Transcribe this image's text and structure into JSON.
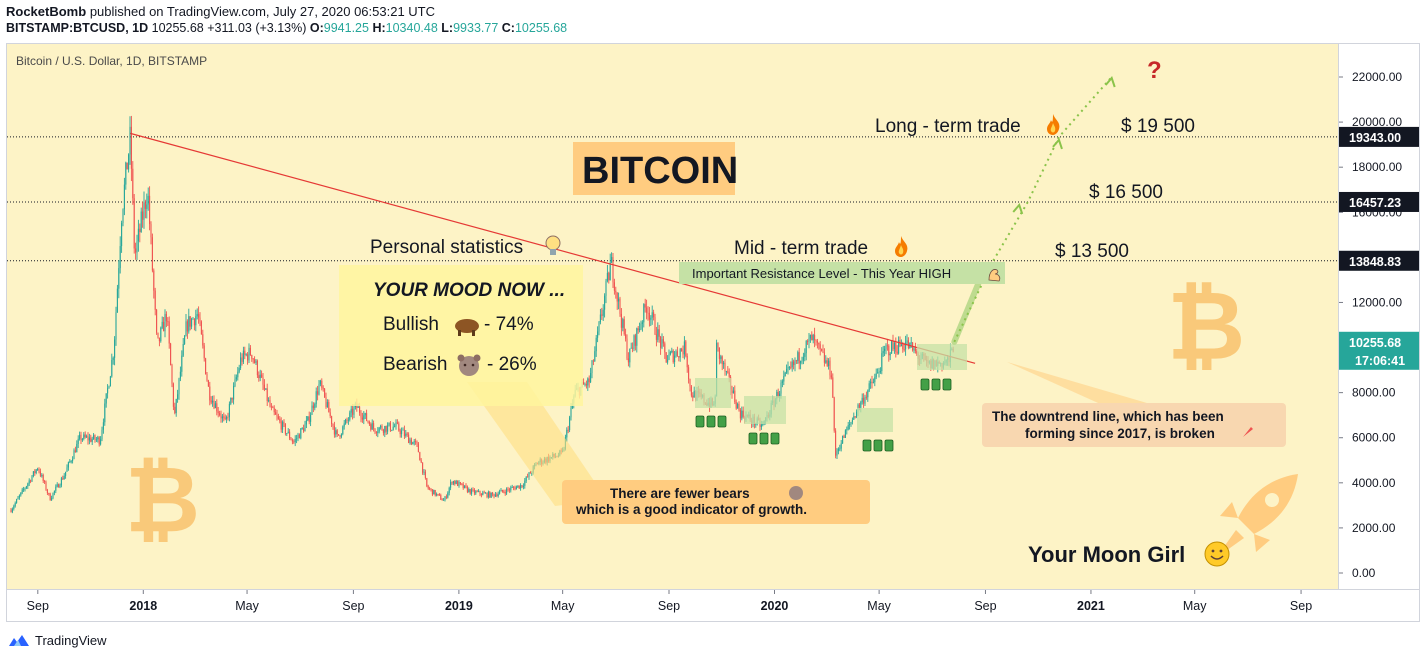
{
  "header": {
    "author": "RocketBomb",
    "published": "published on TradingView.com, July 27, 2020 06:53:21 UTC",
    "symbol_line": "BITSTAMP:BTCUSD, 1D",
    "last": "10255.68",
    "change": "+311.03 (+3.13%)",
    "o_label": "O:",
    "o": "9941.25",
    "h_label": "H:",
    "h": "10340.48",
    "l_label": "L:",
    "l": "9933.77",
    "c_label": "C:",
    "c": "10255.68"
  },
  "footer": {
    "brand": "TradingView"
  },
  "chart_data": {
    "type": "candlestick",
    "title": "Bitcoin / U.S. Dollar, 1D, BITSTAMP",
    "ylim": [
      -1000,
      23000
    ],
    "y_ticks": [
      "0.00",
      "2000.00",
      "4000.00",
      "6000.00",
      "8000.00",
      "10000.00",
      "12000.00",
      "14000.00",
      "16000.00",
      "18000.00",
      "20000.00",
      "22000.00"
    ],
    "x_ticks": [
      "Sep",
      "2018",
      "May",
      "Sep",
      "2019",
      "May",
      "Sep",
      "2020",
      "May",
      "Sep",
      "2021",
      "May",
      "Sep"
    ],
    "price_path": [
      [
        "2017-08-01",
        2800
      ],
      [
        "2017-09-01",
        4700
      ],
      [
        "2017-09-15",
        3300
      ],
      [
        "2017-10-01",
        4300
      ],
      [
        "2017-10-20",
        6000
      ],
      [
        "2017-11-12",
        5900
      ],
      [
        "2017-11-28",
        10000
      ],
      [
        "2017-12-07",
        16000
      ],
      [
        "2017-12-17",
        19343
      ],
      [
        "2017-12-22",
        14000
      ],
      [
        "2018-01-06",
        17000
      ],
      [
        "2018-01-17",
        10000
      ],
      [
        "2018-01-28",
        11500
      ],
      [
        "2018-02-06",
        6900
      ],
      [
        "2018-02-20",
        11000
      ],
      [
        "2018-03-05",
        11500
      ],
      [
        "2018-03-18",
        8000
      ],
      [
        "2018-04-06",
        6600
      ],
      [
        "2018-04-24",
        9500
      ],
      [
        "2018-05-06",
        9800
      ],
      [
        "2018-05-29",
        7200
      ],
      [
        "2018-06-24",
        5800
      ],
      [
        "2018-07-10",
        6700
      ],
      [
        "2018-07-24",
        8400
      ],
      [
        "2018-08-13",
        6000
      ],
      [
        "2018-09-04",
        7400
      ],
      [
        "2018-09-25",
        6400
      ],
      [
        "2018-10-20",
        6500
      ],
      [
        "2018-11-14",
        5600
      ],
      [
        "2018-11-25",
        3800
      ],
      [
        "2018-12-15",
        3200
      ],
      [
        "2018-12-24",
        4100
      ],
      [
        "2019-01-15",
        3600
      ],
      [
        "2019-02-08",
        3450
      ],
      [
        "2019-03-15",
        3900
      ],
      [
        "2019-04-02",
        4900
      ],
      [
        "2019-05-01",
        5300
      ],
      [
        "2019-05-15",
        8000
      ],
      [
        "2019-06-01",
        8500
      ],
      [
        "2019-06-26",
        13800
      ],
      [
        "2019-07-16",
        9500
      ],
      [
        "2019-08-06",
        11900
      ],
      [
        "2019-08-29",
        9500
      ],
      [
        "2019-09-20",
        10000
      ],
      [
        "2019-09-26",
        8000
      ],
      [
        "2019-10-24",
        7400
      ],
      [
        "2019-10-26",
        10000
      ],
      [
        "2019-11-22",
        7100
      ],
      [
        "2019-12-18",
        6500
      ],
      [
        "2020-01-14",
        8700
      ],
      [
        "2020-02-13",
        10400
      ],
      [
        "2020-03-07",
        8900
      ],
      [
        "2020-03-12",
        4800
      ],
      [
        "2020-03-13",
        5400
      ],
      [
        "2020-04-06",
        7300
      ],
      [
        "2020-04-29",
        8800
      ],
      [
        "2020-05-08",
        9900
      ],
      [
        "2020-06-01",
        10200
      ],
      [
        "2020-06-26",
        9200
      ],
      [
        "2020-07-21",
        9400
      ],
      [
        "2020-07-27",
        10255.68
      ]
    ],
    "candles_note": "daily candles, green = up, red = down",
    "horizontal_levels": [
      {
        "price": 19343.0,
        "label": "19343.00"
      },
      {
        "price": 16457.23,
        "label": "16457.23"
      },
      {
        "price": 13848.83,
        "label": "13848.83"
      }
    ],
    "last_price": {
      "label": "10255.68",
      "countdown": "17:06:41",
      "color": "#26a69a"
    },
    "trendline": {
      "from": [
        "2017-12-17",
        19500
      ],
      "to": [
        "2020-08-20",
        9300
      ],
      "color": "#e53935"
    },
    "projection": [
      [
        "2020-07-27",
        10255
      ],
      [
        "2020-09-10",
        13848
      ],
      [
        "2020-10-20",
        16457
      ],
      [
        "2020-11-25",
        19343
      ],
      [
        "2021-01-25",
        22000
      ]
    ],
    "targets": [
      "$ 13 500",
      "$ 16 500",
      "$ 19 500"
    ],
    "question_mark": "?",
    "consolidation_count": 4
  },
  "annotations": {
    "title": "BITCOIN",
    "long_term": "Long - term trade",
    "mid_term": "Mid - term trade",
    "personal": "Personal statistics",
    "resistance": "Important Resistance Level - This Year HIGH",
    "mood_title": "YOUR MOOD NOW ...",
    "bullish_label": "Bullish",
    "bullish_pct": "-  74%",
    "bearish_label": "Bearish",
    "bearish_pct": "-  26%",
    "bears_line1": "There are fewer bears",
    "bears_line2": "which is a good indicator of growth.",
    "downtrend_line1": "The downtrend line, which has been",
    "downtrend_line2": "forming since 2017, is broken",
    "moon_girl": "Your Moon Girl",
    "bitcoin_symbol": "₿"
  },
  "colors": {
    "bg": "#fdf3c6",
    "up": "#26a69a",
    "down": "#ef5350",
    "trend": "#e53935",
    "projection": "#8bc34a",
    "accent": "#ffcc80"
  }
}
